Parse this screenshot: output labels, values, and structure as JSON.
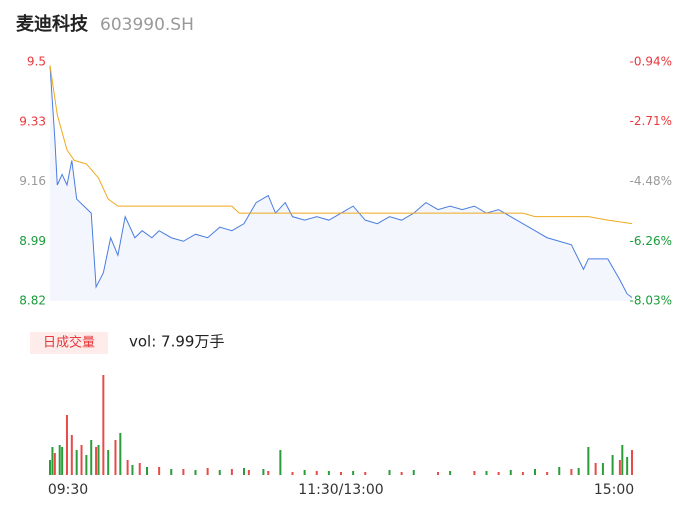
{
  "chart_data": [
    {
      "type": "line",
      "title": "麦迪科技",
      "subtitle": "603990.SH",
      "xlim": [
        0,
        240
      ],
      "ylim": [
        8.82,
        9.5
      ],
      "yticks": [
        9.5,
        9.33,
        9.16,
        8.99,
        8.82
      ],
      "y2lim": [
        -8.03,
        -0.94
      ],
      "y2ticks": [
        {
          "value": -0.94,
          "label": "-0.94%"
        },
        {
          "value": -2.71,
          "label": "-2.71%"
        },
        {
          "value": -4.48,
          "label": "-4.48%"
        },
        {
          "value": -6.26,
          "label": "-6.26%"
        },
        {
          "value": -8.03,
          "label": "-8.03%"
        }
      ],
      "tick_colors": [
        "#e8383d",
        "#e8383d",
        "#999999",
        "#1a9b3a",
        "#1a9b3a"
      ],
      "area_color": "#f3f6fd",
      "series": [
        {
          "color": "#4a7de0",
          "x": [
            0,
            2,
            3,
            5,
            7,
            9,
            11,
            14,
            17,
            19,
            22,
            25,
            28,
            31,
            35,
            38,
            42,
            45,
            50,
            55,
            60,
            65,
            70,
            75,
            80,
            85,
            90,
            93,
            97,
            100,
            105,
            110,
            115,
            120,
            125,
            130,
            135,
            140,
            145,
            150,
            155,
            160,
            165,
            170,
            175,
            180,
            185,
            190,
            195,
            200,
            205,
            210,
            215,
            220,
            222,
            230,
            235,
            238,
            240
          ],
          "values": [
            9.49,
            9.28,
            9.15,
            9.18,
            9.15,
            9.22,
            9.11,
            9.09,
            9.07,
            8.86,
            8.9,
            9.0,
            8.95,
            9.06,
            9.0,
            9.02,
            9.0,
            9.02,
            9.0,
            8.99,
            9.01,
            9.0,
            9.03,
            9.02,
            9.04,
            9.1,
            9.12,
            9.07,
            9.1,
            9.06,
            9.05,
            9.06,
            9.05,
            9.07,
            9.09,
            9.05,
            9.04,
            9.06,
            9.05,
            9.07,
            9.1,
            9.08,
            9.09,
            9.08,
            9.09,
            9.07,
            9.08,
            9.06,
            9.04,
            9.02,
            9.0,
            8.99,
            8.98,
            8.91,
            8.94,
            8.94,
            8.88,
            8.84,
            8.83
          ]
        },
        {
          "color": "#f0a91e",
          "x": [
            0,
            3,
            7,
            10,
            15,
            20,
            24,
            28,
            75,
            78,
            195,
            200,
            222,
            230,
            240
          ],
          "values": [
            9.49,
            9.35,
            9.25,
            9.22,
            9.21,
            9.17,
            9.11,
            9.09,
            9.09,
            9.07,
            9.07,
            9.06,
            9.06,
            9.05,
            9.04
          ]
        }
      ]
    },
    {
      "type": "bar",
      "title": "日成交量",
      "subtitle": "vol: 7.99万手",
      "xlim": [
        0,
        240
      ],
      "ylim": [
        0,
        100
      ],
      "xticks": [
        {
          "value": 0,
          "label": "09:30"
        },
        {
          "value": 120,
          "label": "11:30/13:00"
        },
        {
          "value": 240,
          "label": "15:00"
        }
      ],
      "series": [
        {
          "color": "#e84a4a",
          "x": [
            2,
            7,
            9,
            13,
            19,
            22,
            27,
            32,
            37,
            45,
            55,
            65,
            75,
            82,
            90,
            100,
            110,
            120,
            130,
            145,
            160,
            175,
            185,
            195,
            205,
            215,
            225,
            235,
            240
          ],
          "values": [
            22,
            60,
            40,
            30,
            28,
            100,
            35,
            15,
            12,
            8,
            6,
            7,
            6,
            5,
            4,
            3,
            4,
            3,
            3,
            3,
            3,
            4,
            3,
            3,
            3,
            6,
            12,
            15,
            25
          ]
        },
        {
          "color": "#2a9d3a",
          "x": [
            0,
            1,
            4,
            5,
            11,
            15,
            17,
            20,
            24,
            29,
            34,
            40,
            50,
            60,
            70,
            80,
            88,
            95,
            105,
            115,
            125,
            140,
            150,
            165,
            180,
            190,
            200,
            210,
            218,
            222,
            228,
            232,
            236,
            238
          ],
          "values": [
            15,
            28,
            30,
            28,
            25,
            20,
            35,
            30,
            25,
            42,
            10,
            8,
            6,
            5,
            5,
            7,
            6,
            25,
            5,
            4,
            4,
            5,
            5,
            4,
            4,
            5,
            6,
            8,
            7,
            28,
            12,
            20,
            30,
            18
          ]
        }
      ]
    }
  ]
}
